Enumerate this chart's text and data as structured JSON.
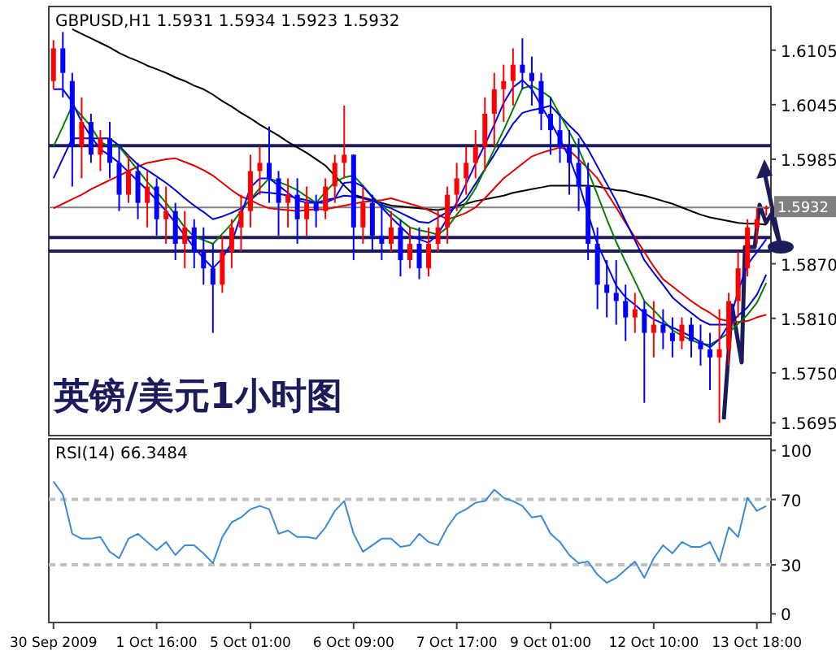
{
  "chart_data": [
    {
      "type": "candlestick",
      "title": "GBPUSD,H1  1.5931 1.5934 1.5923 1.5932",
      "subtitle": "英镑/美元1小时图",
      "categories": [
        null,
        null,
        null,
        null,
        null,
        null,
        null,
        null,
        null,
        null,
        null,
        null,
        null,
        null,
        null,
        null,
        null,
        null,
        null,
        null,
        null,
        null,
        null,
        null,
        null,
        null,
        null,
        null,
        null,
        null,
        null,
        null,
        null,
        null,
        null,
        null,
        null,
        null,
        null,
        null,
        null,
        null,
        null,
        null,
        null,
        null,
        null,
        null,
        null,
        null,
        null,
        null,
        null,
        null,
        null,
        null,
        null,
        null,
        null,
        null,
        null,
        null,
        null,
        null,
        null,
        null,
        null,
        null,
        null,
        null,
        null,
        null,
        null,
        null,
        null,
        null,
        null
      ],
      "ohlc": [
        [
          1.6071,
          1.6116,
          1.6062,
          1.6107
        ],
        [
          1.6107,
          1.6125,
          1.6053,
          1.608
        ],
        [
          1.6071,
          1.608,
          1.5955,
          1.5999
        ],
        [
          1.5999,
          1.6053,
          1.5964,
          1.6026
        ],
        [
          1.6026,
          1.6035,
          1.5981,
          1.599
        ],
        [
          1.599,
          1.6017,
          1.5972,
          1.6008
        ],
        [
          1.6008,
          1.6026,
          1.5964,
          1.5981
        ],
        [
          1.5981,
          1.5999,
          1.5928,
          1.5946
        ],
        [
          1.5946,
          1.599,
          1.5937,
          1.5972
        ],
        [
          1.5972,
          1.5981,
          1.5919,
          1.5937
        ],
        [
          1.5937,
          1.5972,
          1.591,
          1.5955
        ],
        [
          1.5955,
          1.5964,
          1.5901,
          1.5919
        ],
        [
          1.5919,
          1.5955,
          1.5892,
          1.5928
        ],
        [
          1.5928,
          1.5937,
          1.5874,
          1.5892
        ],
        [
          1.5892,
          1.5928,
          1.5865,
          1.591
        ],
        [
          1.591,
          1.5919,
          1.5865,
          1.5883
        ],
        [
          1.5883,
          1.591,
          1.5847,
          1.5865
        ],
        [
          1.5865,
          1.5892,
          1.5794,
          1.5847
        ],
        [
          1.5847,
          1.5901,
          1.5838,
          1.5883
        ],
        [
          1.5883,
          1.5919,
          1.5865,
          1.591
        ],
        [
          1.591,
          1.5946,
          1.5883,
          1.5928
        ],
        [
          1.5928,
          1.599,
          1.591,
          1.5972
        ],
        [
          1.5972,
          1.5999,
          1.5946,
          1.5981
        ],
        [
          1.5981,
          1.6021,
          1.5937,
          1.5964
        ],
        [
          1.5964,
          1.5972,
          1.5901,
          1.5937
        ],
        [
          1.5937,
          1.5964,
          1.591,
          1.5946
        ],
        [
          1.5946,
          1.5964,
          1.5892,
          1.5919
        ],
        [
          1.5919,
          1.5955,
          1.5901,
          1.5937
        ],
        [
          1.5937,
          1.5946,
          1.591,
          1.5928
        ],
        [
          1.5928,
          1.5964,
          1.5919,
          1.5955
        ],
        [
          1.5955,
          1.599,
          1.5937,
          1.5981
        ],
        [
          1.5981,
          1.6044,
          1.5964,
          1.599
        ],
        [
          1.599,
          1.599,
          1.5874,
          1.591
        ],
        [
          1.591,
          1.5955,
          1.5892,
          1.5937
        ],
        [
          1.5937,
          1.5946,
          1.5883,
          1.5901
        ],
        [
          1.5901,
          1.5937,
          1.5874,
          1.5892
        ],
        [
          1.5892,
          1.5928,
          1.5883,
          1.591
        ],
        [
          1.591,
          1.5919,
          1.5856,
          1.5874
        ],
        [
          1.5874,
          1.591,
          1.5865,
          1.5892
        ],
        [
          1.5892,
          1.591,
          1.5853,
          1.5865
        ],
        [
          1.5865,
          1.591,
          1.5856,
          1.5892
        ],
        [
          1.5892,
          1.5928,
          1.5883,
          1.591
        ],
        [
          1.591,
          1.5955,
          1.5892,
          1.5946
        ],
        [
          1.5946,
          1.5981,
          1.5928,
          1.5964
        ],
        [
          1.5964,
          1.5999,
          1.5946,
          1.5981
        ],
        [
          1.5981,
          1.6017,
          1.5964,
          1.5999
        ],
        [
          1.5999,
          1.6053,
          1.5972,
          1.6035
        ],
        [
          1.6035,
          1.608,
          1.5999,
          1.6062
        ],
        [
          1.6062,
          1.6089,
          1.6026,
          1.6071
        ],
        [
          1.6071,
          1.6107,
          1.6044,
          1.6089
        ],
        [
          1.6089,
          1.6118,
          1.6062,
          1.608
        ],
        [
          1.608,
          1.6098,
          1.6044,
          1.6071
        ],
        [
          1.6071,
          1.608,
          1.6017,
          1.6035
        ],
        [
          1.6035,
          1.6053,
          1.599,
          1.6017
        ],
        [
          1.6017,
          1.6035,
          1.5981,
          1.5999
        ],
        [
          1.5999,
          1.6017,
          1.5946,
          1.5981
        ],
        [
          1.5981,
          1.6008,
          1.5928,
          1.5955
        ],
        [
          1.5955,
          1.5981,
          1.5874,
          1.5892
        ],
        [
          1.5892,
          1.591,
          1.582,
          1.5847
        ],
        [
          1.5847,
          1.5874,
          1.5811,
          1.5838
        ],
        [
          1.5838,
          1.5874,
          1.5803,
          1.5829
        ],
        [
          1.5829,
          1.5847,
          1.5785,
          1.5811
        ],
        [
          1.5811,
          1.5838,
          1.5794,
          1.582
        ],
        [
          1.582,
          1.5829,
          1.5717,
          1.5794
        ],
        [
          1.5794,
          1.5829,
          1.5767,
          1.5803
        ],
        [
          1.5803,
          1.582,
          1.5776,
          1.5794
        ],
        [
          1.5794,
          1.5811,
          1.5767,
          1.5785
        ],
        [
          1.5785,
          1.5811,
          1.5776,
          1.5803
        ],
        [
          1.5803,
          1.5811,
          1.5767,
          1.5785
        ],
        [
          1.5785,
          1.5803,
          1.5758,
          1.5776
        ],
        [
          1.5776,
          1.5794,
          1.5731,
          1.5767
        ],
        [
          1.5767,
          1.582,
          1.5695,
          1.5776
        ],
        [
          1.5776,
          1.5838,
          1.5758,
          1.5829
        ],
        [
          1.5829,
          1.5883,
          1.5811,
          1.5865
        ],
        [
          1.5865,
          1.5919,
          1.5856,
          1.591
        ],
        [
          1.591,
          1.5931,
          1.5892,
          1.5919
        ],
        [
          1.5931,
          1.5934,
          1.5923,
          1.5932
        ]
      ],
      "colors": [
        "#ff0000",
        "#0000ff",
        "#0000ff",
        "#ff0000",
        "#0000ff",
        "#ff0000",
        "#0000ff",
        "#0000ff",
        "#ff0000",
        "#0000ff",
        "#ff0000",
        "#0000ff",
        "#ff0000",
        "#0000ff",
        "#ff0000",
        "#0000ff",
        "#0000ff",
        "#0000ff",
        "#ff0000",
        "#ff0000",
        "#ff0000",
        "#ff0000",
        "#ff0000",
        "#0000ff",
        "#0000ff",
        "#ff0000",
        "#0000ff",
        "#ff0000",
        "#0000ff",
        "#ff0000",
        "#ff0000",
        "#ff0000",
        "#0000ff",
        "#ff0000",
        "#0000ff",
        "#0000ff",
        "#ff0000",
        "#0000ff",
        "#ff0000",
        "#0000ff",
        "#ff0000",
        "#ff0000",
        "#ff0000",
        "#ff0000",
        "#ff0000",
        "#ff0000",
        "#ff0000",
        "#ff0000",
        "#ff0000",
        "#ff0000",
        "#0000ff",
        "#0000ff",
        "#0000ff",
        "#0000ff",
        "#0000ff",
        "#0000ff",
        "#0000ff",
        "#0000ff",
        "#0000ff",
        "#0000ff",
        "#0000ff",
        "#0000ff",
        "#ff0000",
        "#0000ff",
        "#ff0000",
        "#0000ff",
        "#0000ff",
        "#ff0000",
        "#0000ff",
        "#0000ff",
        "#0000ff",
        "#ff0000",
        "#ff0000",
        "#ff0000",
        "#ff0000",
        "#ff0000",
        "#ff0000"
      ],
      "series": [
        {
          "type": "line",
          "color": "#000000",
          "values": [
            null,
            null,
            1.6128,
            1.6123,
            1.6118,
            1.6113,
            1.6108,
            1.6102,
            1.6097,
            1.6093,
            1.6088,
            1.6084,
            1.608,
            1.6075,
            1.6071,
            1.6066,
            1.6062,
            1.6056,
            1.6049,
            1.6043,
            1.6036,
            1.603,
            1.6023,
            1.6017,
            1.6011,
            1.6004,
            1.5998,
            1.5992,
            1.5985,
            1.5978,
            1.5967,
            1.5956,
            1.5946,
            1.5943,
            1.594,
            1.5937,
            1.5934,
            1.5933,
            1.5932,
            1.5931,
            1.593,
            1.5929,
            1.5931,
            1.5933,
            1.5936,
            1.5939,
            1.5941,
            1.5943,
            1.5945,
            1.5948,
            1.595,
            1.5952,
            1.5954,
            1.5956,
            1.5956,
            1.5956,
            1.5956,
            1.5956,
            1.5955,
            1.5953,
            1.5951,
            1.595,
            1.5947,
            1.5945,
            1.5942,
            1.5939,
            1.5936,
            1.5932,
            1.5928,
            1.5924,
            1.5921,
            1.5919,
            1.5917,
            1.5915,
            1.5914,
            1.5914,
            1.5913
          ]
        },
        {
          "type": "line",
          "color": "#e00000",
          "values": [
            1.5931,
            1.5936,
            1.5941,
            1.5946,
            1.5952,
            1.5957,
            1.5962,
            1.5967,
            1.5972,
            1.5977,
            1.5981,
            1.5983,
            1.5985,
            1.5986,
            1.5982,
            1.5978,
            1.5973,
            1.5967,
            1.5959,
            1.5951,
            1.5944,
            1.594,
            1.5935,
            1.5931,
            1.593,
            1.5929,
            1.5928,
            1.5929,
            1.593,
            1.593,
            1.5932,
            1.5934,
            1.5936,
            1.5938,
            1.5939,
            1.594,
            1.5942,
            1.5939,
            1.5936,
            1.5933,
            1.5929,
            1.5924,
            1.5919,
            1.5922,
            1.5926,
            1.5932,
            1.5942,
            1.5953,
            1.5964,
            1.5972,
            1.598,
            1.5988,
            1.5992,
            1.5995,
            1.5998,
            1.5995,
            1.5985,
            1.5975,
            1.5964,
            1.5948,
            1.5932,
            1.5915,
            1.5899,
            1.5883,
            1.5867,
            1.5853,
            1.5845,
            1.5837,
            1.5829,
            1.5822,
            1.5816,
            1.5809,
            1.5807,
            1.5806,
            1.5807,
            1.5811,
            1.5814
          ]
        },
        {
          "type": "line",
          "color": "#0000cc",
          "values": [
            1.5964,
            1.5986,
            1.6008,
            1.6008,
            1.6008,
            1.6008,
            1.6008,
            1.6,
            1.5989,
            1.5979,
            1.5973,
            1.5966,
            1.5959,
            1.5951,
            1.5942,
            1.5934,
            1.5927,
            1.5919,
            1.5922,
            1.5926,
            1.5931,
            1.594,
            1.5949,
            1.5948,
            1.5947,
            1.5945,
            1.5942,
            1.594,
            1.5937,
            1.594,
            1.5942,
            1.5945,
            1.5944,
            1.5942,
            1.5939,
            1.5935,
            1.5931,
            1.5926,
            1.5921,
            1.5916,
            1.5915,
            1.5921,
            1.5927,
            1.5933,
            1.5942,
            1.5958,
            1.5974,
            1.599,
            1.6007,
            1.6024,
            1.6036,
            1.6039,
            1.6041,
            1.6044,
            1.6033,
            1.6022,
            1.6012,
            1.5996,
            1.5977,
            1.5958,
            1.5939,
            1.5917,
            1.5896,
            1.5874,
            1.586,
            1.5847,
            1.5833,
            1.5824,
            1.5816,
            1.5808,
            1.5803,
            1.5803,
            1.5803,
            1.5813,
            1.5822,
            1.5836,
            1.5858
          ]
        },
        {
          "type": "line",
          "color": "#008000",
          "values": [
            1.5999,
            1.6021,
            1.6044,
            1.6033,
            1.6021,
            1.6004,
            1.5999,
            1.5999,
            1.5986,
            1.5973,
            1.596,
            1.5949,
            1.5937,
            1.5924,
            1.591,
            1.59,
            1.5896,
            1.5892,
            1.5903,
            1.5914,
            1.5928,
            1.5941,
            1.5953,
            1.5964,
            1.596,
            1.5956,
            1.5951,
            1.5944,
            1.5937,
            1.5949,
            1.596,
            1.5965,
            1.5967,
            1.5956,
            1.5944,
            1.5934,
            1.5926,
            1.5918,
            1.591,
            1.5907,
            1.5905,
            1.5902,
            1.591,
            1.5924,
            1.5937,
            1.5953,
            1.5974,
            1.5996,
            1.6017,
            1.604,
            1.6063,
            1.6066,
            1.606,
            1.6053,
            1.6034,
            1.6015,
            1.5996,
            1.5972,
            1.5946,
            1.5919,
            1.5894,
            1.5872,
            1.5851,
            1.5829,
            1.5819,
            1.5808,
            1.5797,
            1.5791,
            1.5786,
            1.5782,
            1.5781,
            1.5787,
            1.5794,
            1.5804,
            1.5814,
            1.5827,
            1.5849
          ]
        },
        {
          "type": "line",
          "color": "#0000ff",
          "values": [
            1.6062,
            1.6062,
            1.6048,
            1.6026,
            1.601,
            1.5996,
            1.5989,
            1.5981,
            1.5971,
            1.5961,
            1.5951,
            1.594,
            1.5928,
            1.5915,
            1.5901,
            1.5888,
            1.5876,
            1.5865,
            1.5876,
            1.5893,
            1.5924,
            1.5954,
            1.5964,
            1.5964,
            1.5956,
            1.5948,
            1.594,
            1.5937,
            1.5937,
            1.5937,
            1.5942,
            1.5959,
            1.596,
            1.5955,
            1.5943,
            1.5932,
            1.5921,
            1.5911,
            1.5901,
            1.5897,
            1.5893,
            1.5903,
            1.592,
            1.5937,
            1.5958,
            1.598,
            1.6001,
            1.6023,
            1.6047,
            1.6064,
            1.6072,
            1.6062,
            1.6044,
            1.6026,
            1.6007,
            1.5987,
            1.5959,
            1.5925,
            1.5892,
            1.5869,
            1.5846,
            1.5833,
            1.5825,
            1.5816,
            1.5809,
            1.5804,
            1.58,
            1.5795,
            1.579,
            1.5784,
            1.5778,
            1.5787,
            1.5803,
            1.584,
            1.5869,
            1.5883,
            1.5897
          ]
        }
      ],
      "ref_lines": [
        {
          "axis": "y",
          "value": 1.5932,
          "label": "1.5932",
          "color": "#808080"
        },
        {
          "axis": "y",
          "value": 1.6,
          "color": "#1c1c5c"
        },
        {
          "axis": "y",
          "value": 1.5899,
          "color": "#1c1c5c"
        },
        {
          "axis": "y",
          "value": 1.5884,
          "color": "#1c1c5c"
        }
      ],
      "ylim": [
        1.5681,
        1.6153
      ],
      "yticks": [
        1.6105,
        1.6045,
        1.5985,
        {
          "value": 1.587,
          "label": "1.5870"
        },
        {
          "value": 1.581,
          "label": "1.5810"
        },
        {
          "value": 1.575,
          "label": "1.5750"
        },
        1.5695
      ],
      "tick_labels": "y"
    },
    {
      "type": "line",
      "title": "RSI(14) 66.3484",
      "color": "#3a8ad8",
      "categories": [
        "30 Sep 2009",
        null,
        null,
        null,
        null,
        null,
        null,
        null,
        null,
        null,
        null,
        "1 Oct 16:00",
        null,
        null,
        null,
        null,
        null,
        null,
        null,
        null,
        null,
        "5 Oct 01:00",
        null,
        null,
        null,
        null,
        null,
        null,
        null,
        null,
        null,
        null,
        "6 Oct 09:00",
        null,
        null,
        null,
        null,
        null,
        null,
        null,
        null,
        null,
        null,
        "7 Oct 17:00",
        null,
        null,
        null,
        null,
        null,
        null,
        null,
        null,
        null,
        "9 Oct 01:00",
        null,
        null,
        null,
        null,
        null,
        null,
        null,
        null,
        null,
        null,
        "12 Oct 10:00",
        null,
        null,
        null,
        null,
        null,
        null,
        null,
        null,
        null,
        null,
        "13 Oct 18:00",
        null
      ],
      "values": [
        81,
        73,
        49,
        46,
        46,
        47,
        38,
        34,
        46,
        49,
        44,
        39,
        44,
        36,
        42,
        42,
        37,
        31,
        47,
        56,
        59,
        64,
        66,
        64,
        49,
        51,
        47,
        47,
        46,
        53,
        63,
        69,
        49,
        38,
        42,
        46,
        46,
        41,
        42,
        49,
        44,
        42,
        53,
        61,
        64,
        68,
        69,
        76,
        71,
        69,
        66,
        59,
        60,
        49,
        44,
        36,
        31,
        32,
        24,
        19,
        22,
        27,
        32,
        22,
        34,
        42,
        37,
        44,
        41,
        41,
        44,
        32,
        53,
        47,
        71,
        63,
        66
      ],
      "ref_lines": [
        {
          "axis": "y",
          "value": 70,
          "color": "#c0c0c0",
          "line_style": "dashed"
        },
        {
          "axis": "y",
          "value": 30,
          "color": "#c0c0c0",
          "line_style": "dashed"
        }
      ],
      "ylim": [
        -5.3,
        107.1
      ],
      "yticks": [
        100,
        70,
        30,
        0
      ]
    }
  ]
}
